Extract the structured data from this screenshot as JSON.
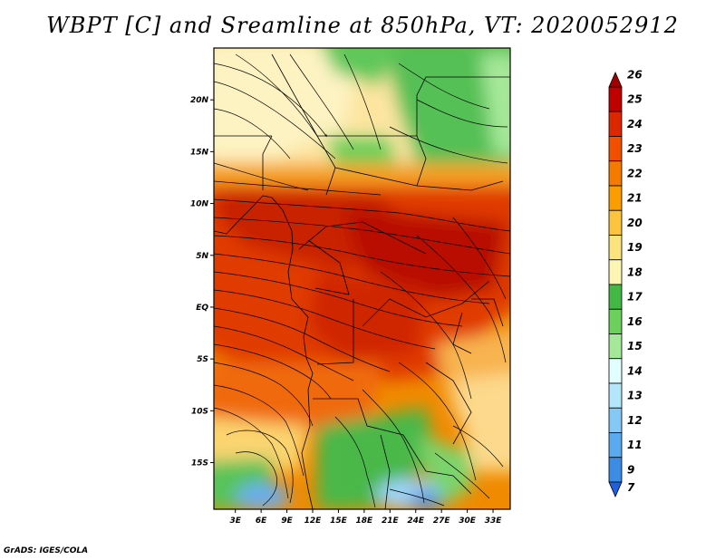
{
  "map": {
    "title": "WBPT [C] and Sreamline at 850hPa, VT: 2020052912",
    "lon_ticks": [
      "3E",
      "6E",
      "9E",
      "12E",
      "15E",
      "18E",
      "21E",
      "24E",
      "27E",
      "30E",
      "33E"
    ],
    "lat_ticks": [
      "20N",
      "15N",
      "10N",
      "5N",
      "EQ",
      "5S",
      "10S",
      "15S"
    ],
    "lon_range": [
      0.5,
      35
    ],
    "lat_range": [
      -19.5,
      25
    ],
    "fields": [
      "wet-bulb potential temperature",
      "streamlines"
    ],
    "credit": "GrADS: IGES/COLA"
  },
  "colorbar": {
    "labels": [
      "26",
      "25",
      "24",
      "23",
      "22",
      "21",
      "20",
      "19",
      "18",
      "17",
      "16",
      "15",
      "14",
      "13",
      "12",
      "11",
      "9",
      "7"
    ],
    "colors": [
      "#a00000",
      "#c00000",
      "#dc2800",
      "#f05000",
      "#f57a00",
      "#fa9d00",
      "#fcc43e",
      "#fbe37e",
      "#fdf5b4",
      "#44b844",
      "#6bd05c",
      "#a5e899",
      "#e1ffff",
      "#b4e6fc",
      "#84c8f6",
      "#5aaaf0",
      "#3c8ce6",
      "#2060dc"
    ]
  }
}
